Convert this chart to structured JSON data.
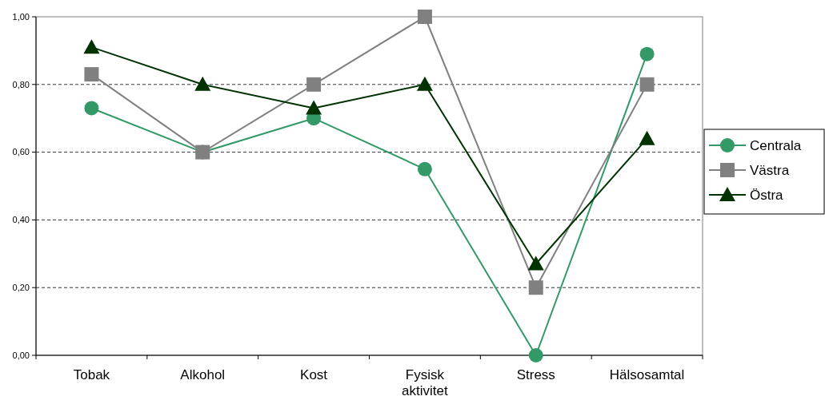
{
  "chart_data": {
    "type": "line",
    "categories": [
      "Tobak",
      "Alkohol",
      "Kost",
      "Fysisk aktivitet",
      "Stress",
      "Hälsosamtal"
    ],
    "series": [
      {
        "name": "Centrala",
        "color": "#339966",
        "marker": "circle",
        "values": [
          0.73,
          0.6,
          0.7,
          0.55,
          0,
          0.89
        ]
      },
      {
        "name": "Västra",
        "color": "#808080",
        "marker": "square",
        "values": [
          0.83,
          0.6,
          0.8,
          1,
          0.2,
          0.8
        ]
      },
      {
        "name": "Östra",
        "color": "#003300",
        "marker": "triangle",
        "values": [
          0.91,
          0.8,
          0.73,
          0.8,
          0.27,
          0.64
        ]
      }
    ],
    "ylim": [
      0,
      1
    ],
    "yticks": [
      {
        "value": 0,
        "label": "0,00"
      },
      {
        "value": 0.2,
        "label": "0,20"
      },
      {
        "value": 0.4,
        "label": "0,40"
      },
      {
        "value": 0.6,
        "label": "0,60"
      },
      {
        "value": 0.8,
        "label": "0,80"
      },
      {
        "value": 1,
        "label": "1,00"
      }
    ],
    "grid": "y",
    "legend": "right",
    "line_style": "solid"
  }
}
